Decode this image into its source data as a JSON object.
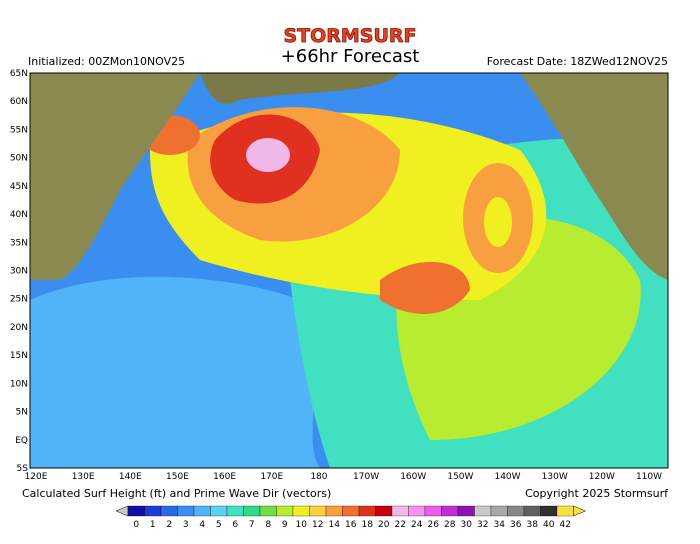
{
  "header": {
    "brand": "STORMSURF",
    "title": "+66hr Forecast",
    "initialized": "Initialized: 00ZMon10NOV25",
    "forecast_date": "Forecast Date: 18ZWed12NOV25"
  },
  "map": {
    "lat_labels": [
      "65N",
      "60N",
      "55N",
      "50N",
      "45N",
      "40N",
      "35N",
      "30N",
      "25N",
      "20N",
      "15N",
      "10N",
      "5N",
      "EQ",
      "5S"
    ],
    "lon_labels": [
      "120E",
      "130E",
      "140E",
      "150E",
      "160E",
      "170E",
      "180",
      "170W",
      "160W",
      "150W",
      "140W",
      "130W",
      "120W",
      "110W"
    ]
  },
  "footer": {
    "caption": "Calculated Surf Height (ft) and Prime Wave Dir (vectors)",
    "copyright": "Copyright 2025 Stormsurf"
  },
  "legend": {
    "labels": [
      "0",
      "1",
      "2",
      "3",
      "4",
      "5",
      "6",
      "7",
      "8",
      "9",
      "10",
      "12",
      "14",
      "16",
      "18",
      "20",
      "22",
      "24",
      "26",
      "28",
      "30",
      "32",
      "34",
      "36",
      "38",
      "40",
      "42"
    ],
    "colors": [
      "#1010a8",
      "#1c3cd8",
      "#2a6ae8",
      "#3a8ef0",
      "#52b4f8",
      "#5cd4f0",
      "#40e0c0",
      "#30d890",
      "#70e040",
      "#b8ec30",
      "#f0f020",
      "#f8d040",
      "#f8a040",
      "#f07030",
      "#e03020",
      "#c80010",
      "#f0b8e8",
      "#f890f0",
      "#e860e8",
      "#c030d0",
      "#9010b0",
      "#c8c8c8",
      "#a8a8a8",
      "#888888",
      "#606060",
      "#303030",
      "#f8e040"
    ]
  }
}
